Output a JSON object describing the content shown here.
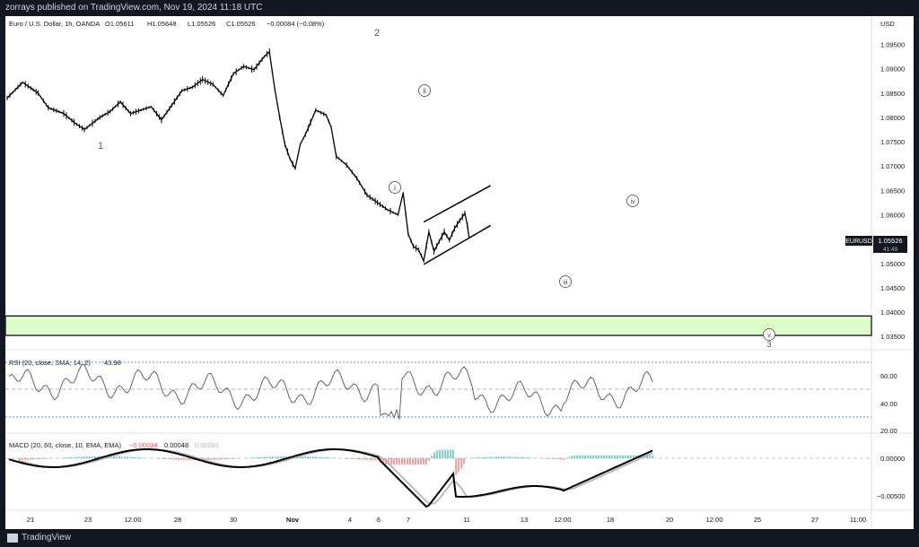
{
  "publish_info": "zorrays published on TradingView.com, Nov 19, 2024 11:18 UTC",
  "brand": "TradingView",
  "colors": {
    "bg": "#131722",
    "panel": "#ffffff",
    "price": "#000000",
    "rsi": "#555555",
    "band_fill": "#dcfcc8",
    "grid": "#e0e3eb",
    "macd_pos": "#26a69a",
    "macd_neg": "#ef5350"
  },
  "header": {
    "symbol": "Euro / U.S. Dollar, 1h, OANDA",
    "open": "O1.05611",
    "high": "H1.05648",
    "low": "L1.05526",
    "close": "C1.05526",
    "change": "−0.00084 (−0.08%)"
  },
  "price_axis": {
    "currency": "USD",
    "labels": [
      "1.09500",
      "1.09000",
      "1.08500",
      "1.08000",
      "1.07500",
      "1.07000",
      "1.06500",
      "1.06000",
      "1.05500",
      "1.05000",
      "1.04500",
      "1.04000",
      "1.03500"
    ]
  },
  "tag": {
    "symbol": "EURUSD",
    "price": "1.05526",
    "countdown": "41:49"
  },
  "wave_labels": {
    "w1": "1",
    "w2": "2",
    "wi": "i",
    "wii": "ii",
    "wiii": "iii",
    "wiv": "iv",
    "wv": "v",
    "w3": "3"
  },
  "rsi": {
    "legend": "RSI (20, close, SMA, 14, 2)",
    "value": "43.98",
    "axis": [
      "60.00",
      "40.00",
      "20.00"
    ]
  },
  "macd": {
    "legend": "MACD (20, 60, close, 10, EMA, EMA)",
    "hist": "−0.00034",
    "macd": "0.00048",
    "signal": "0.00081",
    "axis": [
      "0.00000",
      "−0.00500"
    ]
  },
  "time_axis": [
    "21",
    "23",
    "12:00",
    "28",
    "30",
    "Nov",
    "4",
    "6",
    "7",
    "11",
    "13",
    "12:00",
    "18",
    "20",
    "12:00",
    "25",
    "27",
    "11:00"
  ],
  "chart_data": {
    "type": "line",
    "title": "Euro / U.S. Dollar, 1h, OANDA",
    "ylabel": "USD",
    "ylim": [
      1.033,
      1.0975
    ],
    "series": [
      {
        "name": "EURUSD",
        "points": [
          [
            "Oct 18 00:00",
            1.084
          ],
          [
            "Oct 18 18:00",
            1.0872
          ],
          [
            "Oct 21 12:00",
            1.085
          ],
          [
            "Oct 22 00:00",
            1.082
          ],
          [
            "Oct 22 18:00",
            1.0808
          ],
          [
            "Oct 23 06:00",
            1.079
          ],
          [
            "Oct 23 18:00",
            1.0775
          ],
          [
            "Oct 24 12:00",
            1.08
          ],
          [
            "Oct 25 00:00",
            1.0812
          ],
          [
            "Oct 25 12:00",
            1.0832
          ],
          [
            "Oct 28 00:00",
            1.0808
          ],
          [
            "Oct 28 12:00",
            1.0815
          ],
          [
            "Oct 29 00:00",
            1.0822
          ],
          [
            "Oct 29 12:00",
            1.0795
          ],
          [
            "Oct 30 00:00",
            1.0825
          ],
          [
            "Oct 30 12:00",
            1.0855
          ],
          [
            "Oct 31 00:00",
            1.0862
          ],
          [
            "Oct 31 12:00",
            1.0878
          ],
          [
            "Nov 1 00:00",
            1.0868
          ],
          [
            "Nov 1 12:00",
            1.0845
          ],
          [
            "Nov 4 00:00",
            1.089
          ],
          [
            "Nov 4 12:00",
            1.0905
          ],
          [
            "Nov 5 00:00",
            1.0898
          ],
          [
            "Nov 5 12:00",
            1.0925
          ],
          [
            "Nov 5 18:00",
            1.0935
          ],
          [
            "Nov 6 00:00",
            1.086
          ],
          [
            "Nov 6 06:00",
            1.08
          ],
          [
            "Nov 6 12:00",
            1.0745
          ],
          [
            "Nov 6 18:00",
            1.0715
          ],
          [
            "Nov 7 00:00",
            1.0695
          ],
          [
            "Nov 7 06:00",
            1.0745
          ],
          [
            "Nov 7 12:00",
            1.0765
          ],
          [
            "Nov 7 18:00",
            1.079
          ],
          [
            "Nov 8 00:00",
            1.0815
          ],
          [
            "Nov 8 12:00",
            1.0805
          ],
          [
            "Nov 8 18:00",
            1.078
          ],
          [
            "Nov 11 00:00",
            1.072
          ],
          [
            "Nov 11 12:00",
            1.0702
          ],
          [
            "Nov 12 00:00",
            1.0675
          ],
          [
            "Nov 12 12:00",
            1.064
          ],
          [
            "Nov 13 00:00",
            1.0625
          ],
          [
            "Nov 13 12:00",
            1.061
          ],
          [
            "Nov 14 00:00",
            1.06
          ],
          [
            "Nov 14 06:00",
            1.0645
          ],
          [
            "Nov 14 12:00",
            1.056
          ],
          [
            "Nov 14 18:00",
            1.0535
          ],
          [
            "Nov 15 00:00",
            1.0528
          ],
          [
            "Nov 15 06:00",
            1.0505
          ],
          [
            "Nov 15 12:00",
            1.0565
          ],
          [
            "Nov 15 18:00",
            1.0525
          ],
          [
            "Nov 18 00:00",
            1.0545
          ],
          [
            "Nov 18 06:00",
            1.0565
          ],
          [
            "Nov 18 12:00",
            1.0548
          ],
          [
            "Nov 18 18:00",
            1.0572
          ],
          [
            "Nov 19 00:00",
            1.0588
          ],
          [
            "Nov 19 06:00",
            1.0603
          ],
          [
            "Nov 19 09:00",
            1.0578
          ],
          [
            "Nov 19 11:00",
            1.0553
          ]
        ]
      }
    ],
    "channel": {
      "upper": [
        [
          "Nov 15 06:00",
          1.0585
        ],
        [
          "Nov 20 12:00",
          1.066
        ]
      ],
      "lower": [
        [
          "Nov 15 06:00",
          1.0498
        ],
        [
          "Nov 20 12:00",
          1.0578
        ]
      ]
    },
    "target_zone": [
      1.0352,
      1.0392
    ],
    "rsi_levels": [
      70,
      50,
      30
    ],
    "grid": false
  }
}
